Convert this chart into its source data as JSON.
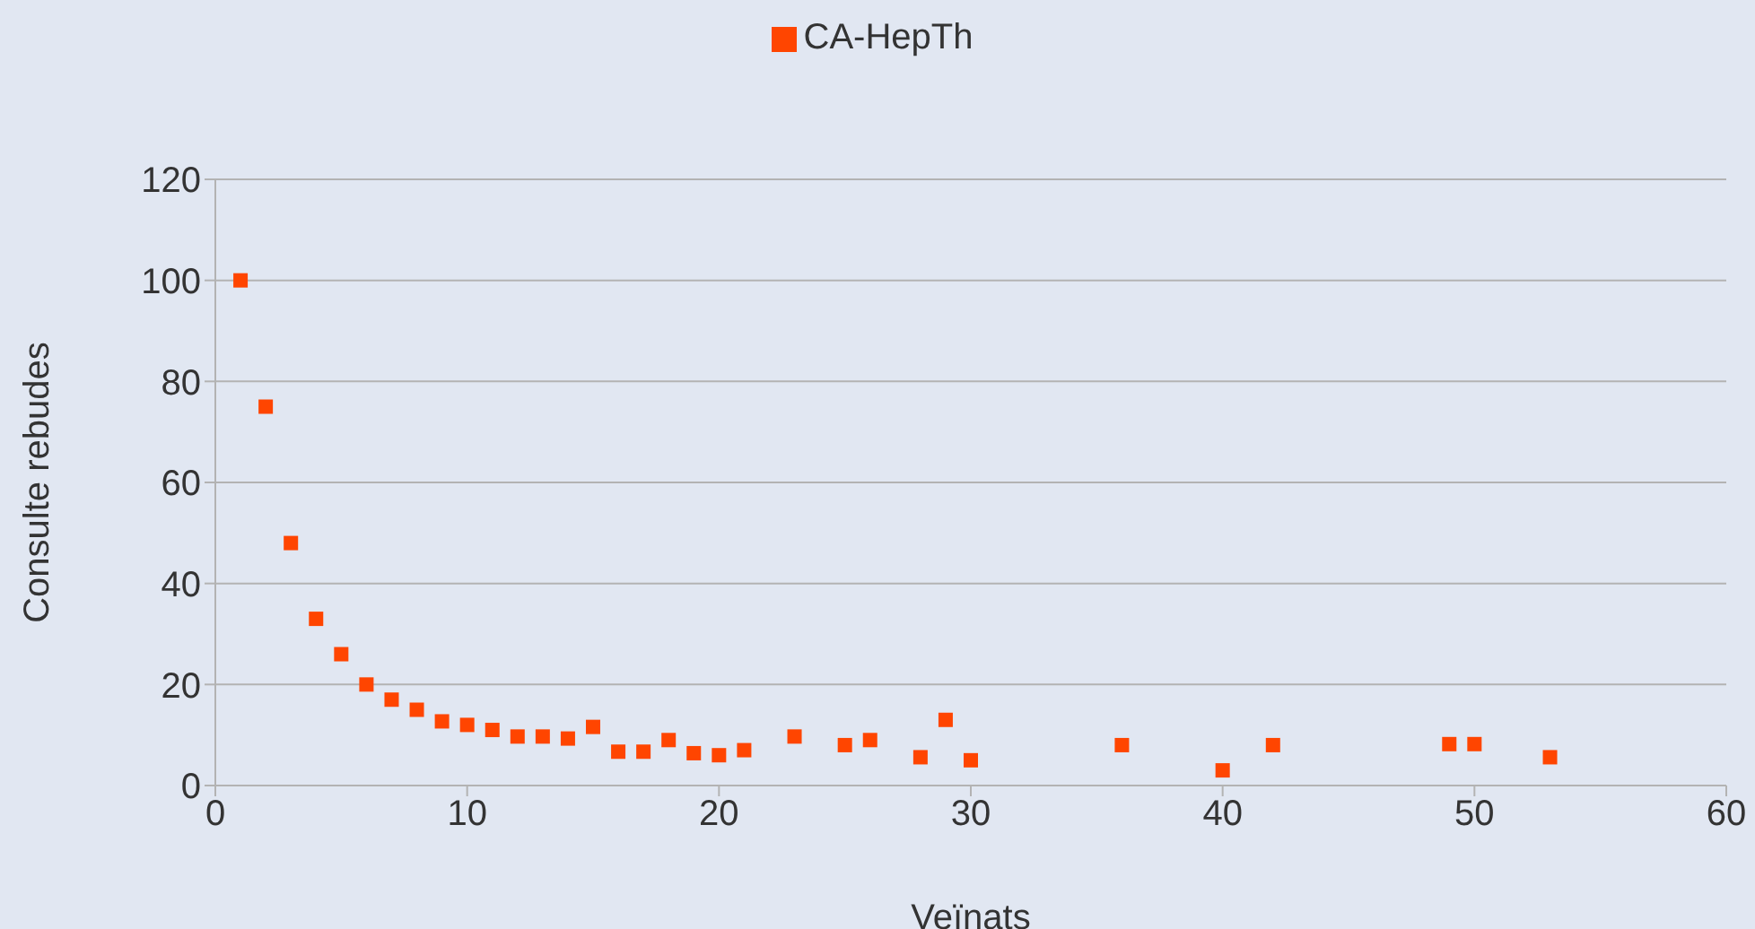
{
  "chart_data": {
    "type": "scatter",
    "xlabel": "Veïnats",
    "ylabel": "Consulte rebudes",
    "x": [
      1,
      2,
      3,
      4,
      5,
      6,
      7,
      8,
      9,
      10,
      11,
      12,
      13,
      14,
      15,
      16,
      17,
      18,
      19,
      20,
      21,
      23,
      25,
      26,
      28,
      29,
      30,
      36,
      40,
      42,
      49,
      50,
      53
    ],
    "series": [
      {
        "name": "CA-HepTh",
        "color": "#ff4500",
        "values": [
          100,
          75,
          48,
          33,
          26,
          20,
          17,
          15,
          12.7,
          12,
          11,
          9.7,
          9.7,
          9.3,
          11.6,
          6.7,
          6.7,
          9,
          6.4,
          6,
          7,
          9.7,
          8,
          9,
          5.6,
          13,
          5,
          8,
          3,
          8,
          8.2,
          8.2,
          5.6
        ]
      }
    ],
    "xlim": [
      0,
      60
    ],
    "xticks": [
      0,
      10,
      20,
      30,
      40,
      50,
      60
    ],
    "ylim": [
      0,
      120
    ],
    "yticks": [
      0,
      20,
      40,
      60,
      80,
      100,
      120
    ],
    "grid": "y",
    "legend": "top",
    "marker": "square"
  }
}
